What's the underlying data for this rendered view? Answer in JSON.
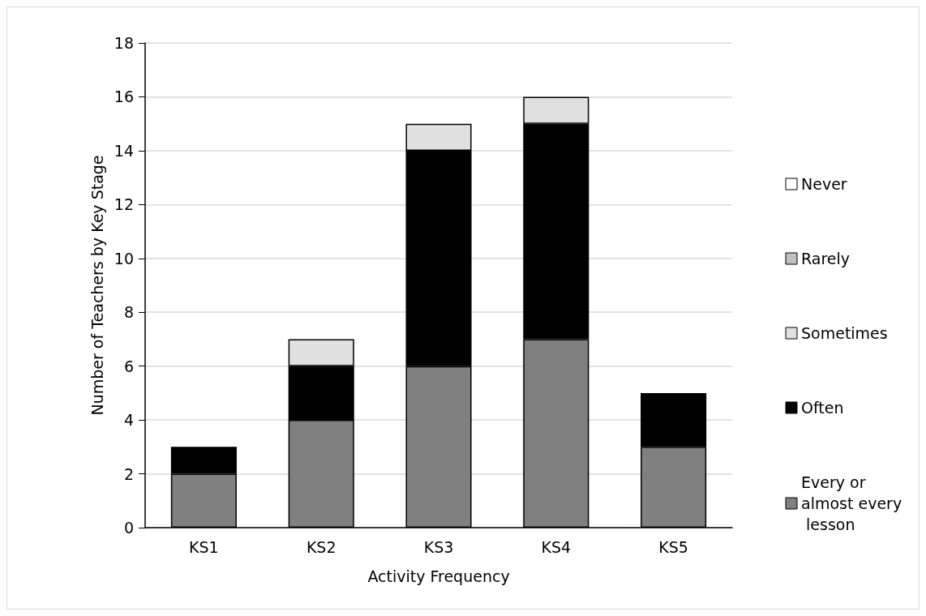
{
  "chart_data": {
    "type": "bar",
    "stacked": true,
    "xlabel": "Activity Frequency",
    "ylabel": "Number of Teachers by Key Stage",
    "categories": [
      "KS1",
      "KS2",
      "KS3",
      "KS4",
      "KS5"
    ],
    "series": [
      {
        "name": "Every or almost every lesson",
        "color": "#808080",
        "values": [
          2,
          4,
          6,
          7,
          3
        ]
      },
      {
        "name": "Often",
        "color": "#000000",
        "values": [
          1,
          2,
          8,
          8,
          2
        ]
      },
      {
        "name": "Sometimes",
        "color": "#e0e0e0",
        "values": [
          0,
          1,
          1,
          1,
          0
        ]
      },
      {
        "name": "Rarely",
        "color": "#c0c0c0",
        "values": [
          0,
          0,
          0,
          0,
          0
        ]
      },
      {
        "name": "Never",
        "color": "#ffffff",
        "values": [
          0,
          0,
          0,
          0,
          0
        ]
      }
    ],
    "ylim": [
      0,
      18
    ],
    "yticks": [
      0,
      2,
      4,
      6,
      8,
      10,
      12,
      14,
      16,
      18
    ],
    "grid": "y",
    "legend": "right"
  }
}
